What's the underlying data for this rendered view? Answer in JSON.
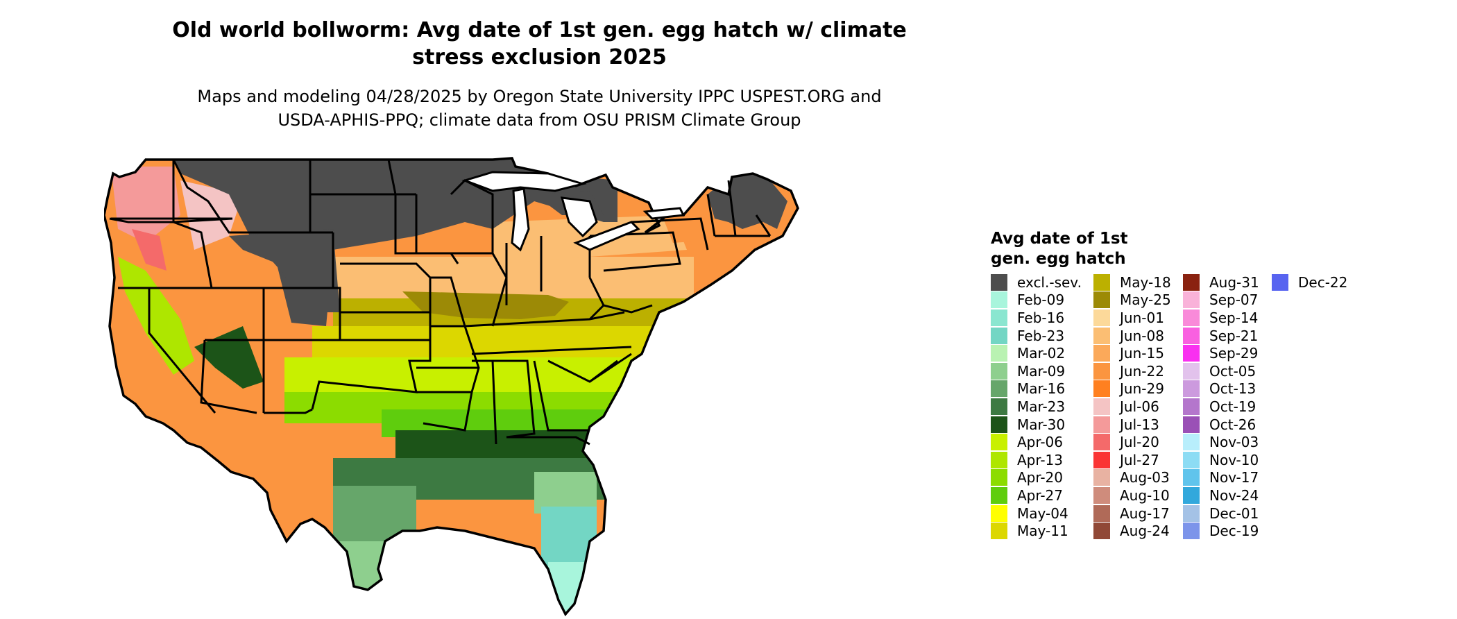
{
  "title_line1": "Old world bollworm: Avg date of 1st gen. egg hatch w/ climate",
  "title_line2": "stress exclusion 2025",
  "subtitle_line1": "Maps and modeling 04/28/2025 by Oregon State University IPPC USPEST.ORG and",
  "subtitle_line2": "USDA-APHIS-PPQ; climate data from OSU PRISM Climate Group",
  "legend": {
    "title_line1": "Avg date of 1st",
    "title_line2": "gen. egg hatch",
    "columns": [
      [
        {
          "label": "excl.-sev.",
          "color": "#4d4d4d"
        },
        {
          "label": "Feb-09",
          "color": "#a8f5dc"
        },
        {
          "label": "Feb-16",
          "color": "#8ae6d0"
        },
        {
          "label": "Feb-23",
          "color": "#73d6c4"
        },
        {
          "label": "Mar-02",
          "color": "#b9f2b2"
        },
        {
          "label": "Mar-09",
          "color": "#8ecf8e"
        },
        {
          "label": "Mar-16",
          "color": "#66a66a"
        },
        {
          "label": "Mar-23",
          "color": "#3d7a42"
        },
        {
          "label": "Mar-30",
          "color": "#1c5418"
        },
        {
          "label": "Apr-06",
          "color": "#c8f000"
        },
        {
          "label": "Apr-13",
          "color": "#aee600"
        },
        {
          "label": "Apr-20",
          "color": "#8cdc00"
        },
        {
          "label": "Apr-27",
          "color": "#5fcd0d"
        },
        {
          "label": "May-04",
          "color": "#ffff00"
        },
        {
          "label": "May-11",
          "color": "#dcd700"
        }
      ],
      [
        {
          "label": "May-18",
          "color": "#bcb000"
        },
        {
          "label": "May-25",
          "color": "#9c8a06"
        },
        {
          "label": "Jun-01",
          "color": "#fcd99a"
        },
        {
          "label": "Jun-08",
          "color": "#fbbe73"
        },
        {
          "label": "Jun-15",
          "color": "#fba95a"
        },
        {
          "label": "Jun-22",
          "color": "#fb9540"
        },
        {
          "label": "Jun-29",
          "color": "#ff8020"
        },
        {
          "label": "Jul-06",
          "color": "#f4c4c4"
        },
        {
          "label": "Jul-13",
          "color": "#f49a9a"
        },
        {
          "label": "Jul-20",
          "color": "#f46a6a"
        },
        {
          "label": "Jul-27",
          "color": "#fa3434"
        },
        {
          "label": "Aug-03",
          "color": "#e8b2a2"
        },
        {
          "label": "Aug-10",
          "color": "#cf8c7c"
        },
        {
          "label": "Aug-17",
          "color": "#b06a58"
        },
        {
          "label": "Aug-24",
          "color": "#904836"
        }
      ],
      [
        {
          "label": "Aug-31",
          "color": "#8a2210"
        },
        {
          "label": "Sep-07",
          "color": "#f9b2d9"
        },
        {
          "label": "Sep-14",
          "color": "#f98ad9"
        },
        {
          "label": "Sep-21",
          "color": "#f960e0"
        },
        {
          "label": "Sep-29",
          "color": "#f930f0"
        },
        {
          "label": "Oct-05",
          "color": "#e2c2ec"
        },
        {
          "label": "Oct-13",
          "color": "#cc9ade"
        },
        {
          "label": "Oct-19",
          "color": "#b476cc"
        },
        {
          "label": "Oct-26",
          "color": "#9a50b6"
        },
        {
          "label": "Nov-03",
          "color": "#b8eefc"
        },
        {
          "label": "Nov-10",
          "color": "#8cdcf4"
        },
        {
          "label": "Nov-17",
          "color": "#60c4ec"
        },
        {
          "label": "Nov-24",
          "color": "#32a8dc"
        },
        {
          "label": "Dec-01",
          "color": "#a4c2e6"
        },
        {
          "label": "Dec-19",
          "color": "#7c94ea"
        }
      ],
      [
        {
          "label": "Dec-22",
          "color": "#5864f0"
        }
      ]
    ]
  }
}
